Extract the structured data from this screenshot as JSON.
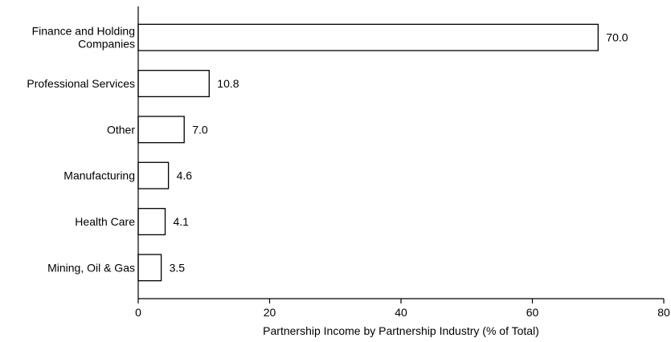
{
  "chart_data": {
    "type": "bar",
    "orientation": "horizontal",
    "categories": [
      [
        "Finance and Holding",
        "Companies"
      ],
      [
        "Professional Services"
      ],
      [
        "Other"
      ],
      [
        "Manufacturing"
      ],
      [
        "Health Care"
      ],
      [
        "Mining, Oil & Gas"
      ]
    ],
    "values": [
      70.0,
      10.8,
      7.0,
      4.6,
      4.1,
      3.5
    ],
    "value_labels": [
      "70.0",
      "10.8",
      "7.0",
      "4.6",
      "4.1",
      "3.5"
    ],
    "xlabel": "Partnership Income by Partnership Industry (% of Total)",
    "xlim": [
      0,
      80
    ],
    "xticks": [
      0,
      20,
      40,
      60,
      80
    ],
    "grid": false,
    "bar_fill": "#ffffff",
    "bar_stroke": "#000000"
  }
}
